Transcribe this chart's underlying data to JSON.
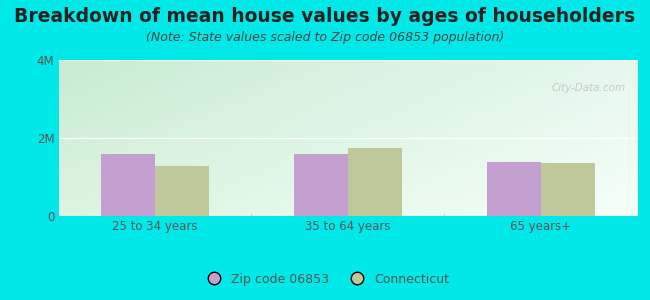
{
  "title": "Breakdown of mean house values by ages of householders",
  "subtitle": "(Note: State values scaled to Zip code 06853 population)",
  "categories": [
    "25 to 34 years",
    "35 to 64 years",
    "65 years+"
  ],
  "zip_values": [
    1580000,
    1580000,
    1380000
  ],
  "state_values": [
    1280000,
    1750000,
    1350000
  ],
  "ylim": [
    0,
    4000000
  ],
  "yticks": [
    0,
    2000000,
    4000000
  ],
  "ytick_labels": [
    "0",
    "2M",
    "4M"
  ],
  "zip_color": "#c4a0d0",
  "state_color": "#bec89a",
  "outer_bg": "#00e8e8",
  "plot_bg_top_left": "#c8ecd0",
  "plot_bg_right": "#e8f8f0",
  "plot_bg_bottom": "#d8f4e4",
  "legend_zip": "Zip code 06853",
  "legend_state": "Connecticut",
  "bar_width": 0.28,
  "title_fontsize": 13.5,
  "subtitle_fontsize": 9,
  "tick_fontsize": 8.5,
  "legend_fontsize": 9,
  "title_color": "#222222",
  "subtitle_color": "#444444",
  "tick_color": "#555555"
}
